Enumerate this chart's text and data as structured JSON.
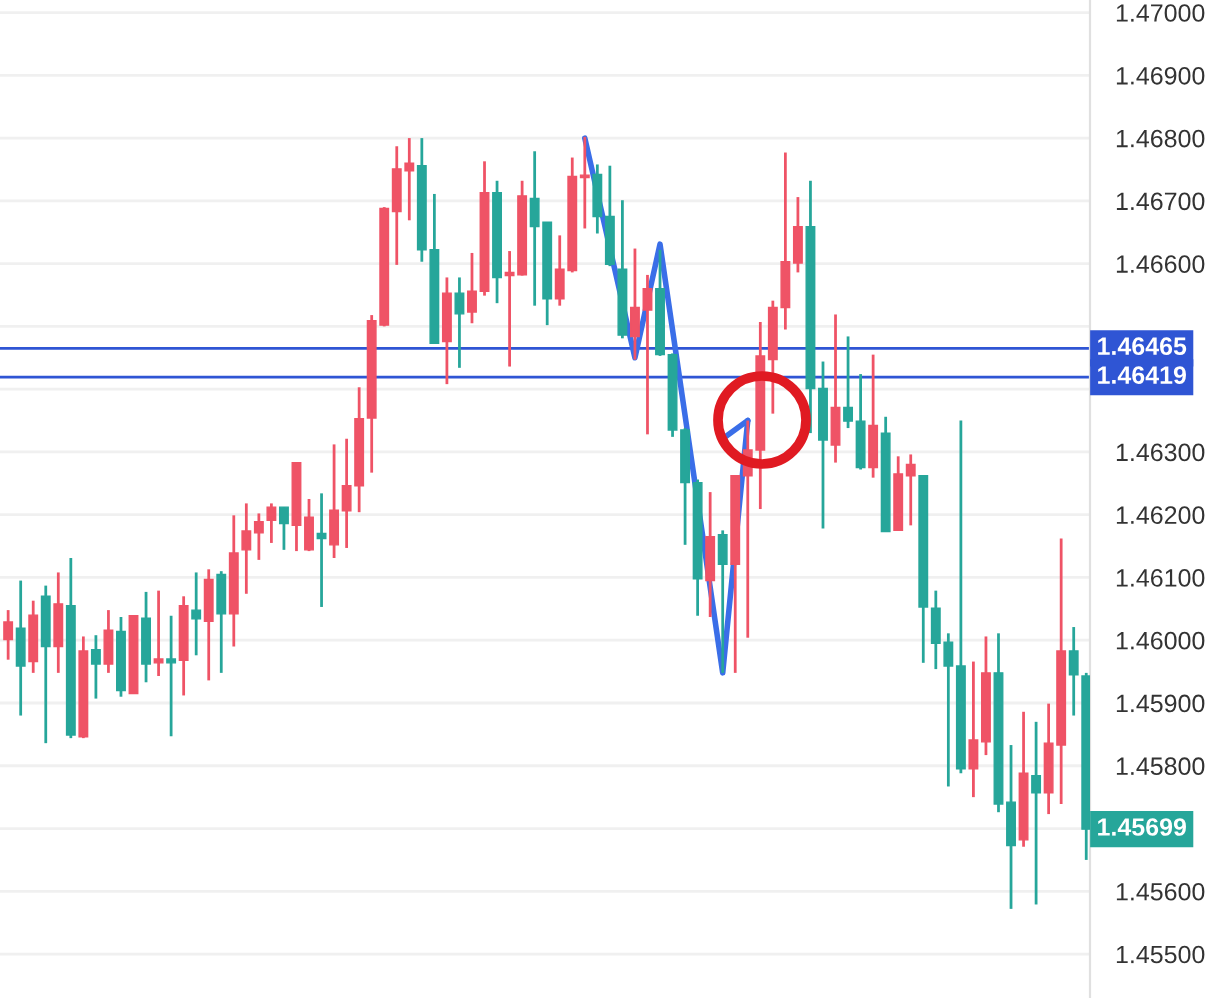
{
  "chart_data": {
    "type": "candlestick",
    "categories": [
      null,
      null,
      null,
      null,
      null,
      null,
      null,
      null,
      null,
      null,
      null,
      null,
      null,
      null,
      null,
      null,
      null,
      null,
      null,
      null,
      null,
      null,
      null,
      null,
      null,
      null,
      null,
      null,
      null,
      null,
      null,
      null,
      null,
      null,
      null,
      null,
      null,
      null,
      null,
      null,
      null,
      null,
      null,
      null,
      null,
      null,
      null,
      null,
      null,
      null,
      null,
      null,
      null,
      null,
      null,
      null,
      null,
      null,
      null,
      null,
      null,
      null,
      null,
      null,
      null,
      null,
      null,
      null,
      null,
      null,
      null,
      null,
      null,
      null,
      null,
      null,
      null,
      null,
      null,
      null,
      null,
      null,
      null,
      null,
      null,
      null,
      null
    ],
    "ohlc": [
      [
        1.46001,
        1.46048,
        1.45969,
        1.46029
      ],
      [
        1.46019,
        1.46095,
        1.4588,
        1.45959
      ],
      [
        1.45966,
        1.46063,
        1.45948,
        1.4604
      ],
      [
        1.4607,
        1.46087,
        1.45836,
        1.4599
      ],
      [
        1.4599,
        1.46108,
        1.45948,
        1.46058
      ],
      [
        1.46055,
        1.46131,
        1.45844,
        1.45849
      ],
      [
        1.45846,
        1.46006,
        1.45844,
        1.45983
      ],
      [
        1.45985,
        1.46008,
        1.45907,
        1.45962
      ],
      [
        1.45962,
        1.46048,
        1.45948,
        1.46016
      ],
      [
        1.46014,
        1.46037,
        1.4591,
        1.4592
      ],
      [
        1.45915,
        1.46039,
        1.45915,
        1.46039
      ],
      [
        1.46035,
        1.46077,
        1.45933,
        1.45962
      ],
      [
        1.45964,
        1.46079,
        1.45943,
        1.4597
      ],
      [
        1.4597,
        1.46039,
        1.45847,
        1.45964
      ],
      [
        1.45968,
        1.4607,
        1.45912,
        1.46055
      ],
      [
        1.46048,
        1.46108,
        1.45976,
        1.46034
      ],
      [
        1.4603,
        1.46113,
        1.45936,
        1.46097
      ],
      [
        1.46105,
        1.4611,
        1.45948,
        1.46042
      ],
      [
        1.46042,
        1.46199,
        1.4599,
        1.46139
      ],
      [
        1.46144,
        1.46218,
        1.46074,
        1.46174
      ],
      [
        1.46171,
        1.46202,
        1.46128,
        1.46189
      ],
      [
        1.46191,
        1.46218,
        1.46155,
        1.46212
      ],
      [
        1.46212,
        1.46212,
        1.46144,
        1.46186
      ],
      [
        1.46183,
        1.46283,
        1.46142,
        1.46283
      ],
      [
        1.46144,
        1.46225,
        1.46142,
        1.46196
      ],
      [
        1.4617,
        1.46234,
        1.46053,
        1.46162
      ],
      [
        1.46152,
        1.46312,
        1.46131,
        1.46207
      ],
      [
        1.46206,
        1.46321,
        1.46147,
        1.46246
      ],
      [
        1.46246,
        1.46403,
        1.46204,
        1.46353
      ],
      [
        1.46354,
        1.46518,
        1.46267,
        1.46509
      ],
      [
        1.46502,
        1.4669,
        1.465,
        1.46688
      ],
      [
        1.46683,
        1.46787,
        1.46598,
        1.46751
      ],
      [
        1.46748,
        1.468,
        1.46669,
        1.4676
      ],
      [
        1.46756,
        1.468,
        1.46603,
        1.46622
      ],
      [
        1.46622,
        1.46711,
        1.46473,
        1.46473
      ],
      [
        1.46476,
        1.46578,
        1.46408,
        1.46553
      ],
      [
        1.46553,
        1.46578,
        1.46434,
        1.4652
      ],
      [
        1.46523,
        1.46617,
        1.46505,
        1.46556
      ],
      [
        1.46556,
        1.46763,
        1.46549,
        1.46713
      ],
      [
        1.46713,
        1.46732,
        1.46537,
        1.46578
      ],
      [
        1.46581,
        1.4662,
        1.46436,
        1.46586
      ],
      [
        1.46582,
        1.46732,
        1.46581,
        1.46708
      ],
      [
        1.46704,
        1.46779,
        1.46533,
        1.46659
      ],
      [
        1.46666,
        1.46666,
        1.46502,
        1.46544
      ],
      [
        1.46544,
        1.46645,
        1.46533,
        1.46591
      ],
      [
        1.46589,
        1.46769,
        1.46586,
        1.46739
      ],
      [
        1.46737,
        1.46802,
        1.46656,
        1.46741
      ],
      [
        1.46742,
        1.46758,
        1.46648,
        1.46675
      ],
      [
        1.46675,
        1.46756,
        1.46596,
        1.46599
      ],
      [
        1.46591,
        1.46701,
        1.46481,
        1.46486
      ],
      [
        1.46484,
        1.46624,
        1.46447,
        1.4653
      ],
      [
        1.46526,
        1.46582,
        1.46328,
        1.4656
      ],
      [
        1.4656,
        1.46622,
        1.46453,
        1.46455
      ],
      [
        1.46455,
        1.46457,
        1.46324,
        1.46335
      ],
      [
        1.46335,
        1.46338,
        1.46152,
        1.46251
      ],
      [
        1.46251,
        1.46256,
        1.46039,
        1.46098
      ],
      [
        1.46095,
        1.46236,
        1.46037,
        1.46165
      ],
      [
        1.46168,
        1.46175,
        1.45948,
        1.46121
      ],
      [
        1.46121,
        1.46262,
        1.45948,
        1.46262
      ],
      [
        1.46262,
        1.4635,
        1.46004,
        1.46303
      ],
      [
        1.46303,
        1.46507,
        1.46209,
        1.46453
      ],
      [
        1.46447,
        1.46541,
        1.46361,
        1.4653
      ],
      [
        1.4653,
        1.46777,
        1.46495,
        1.46603
      ],
      [
        1.46601,
        1.46706,
        1.46586,
        1.46659
      ],
      [
        1.46659,
        1.46732,
        1.4633,
        1.46401
      ],
      [
        1.46401,
        1.46444,
        1.46178,
        1.46319
      ],
      [
        1.46311,
        1.46519,
        1.46283,
        1.46371
      ],
      [
        1.46371,
        1.46484,
        1.46338,
        1.46349
      ],
      [
        1.46349,
        1.46424,
        1.46272,
        1.46275
      ],
      [
        1.46275,
        1.46455,
        1.46259,
        1.46342
      ],
      [
        1.4633,
        1.46356,
        1.46173,
        1.46173
      ],
      [
        1.46175,
        1.46293,
        1.46175,
        1.46265
      ],
      [
        1.46262,
        1.46296,
        1.46183,
        1.4628
      ],
      [
        1.46262,
        1.46262,
        1.45964,
        1.46053
      ],
      [
        1.46051,
        1.46079,
        1.45954,
        1.45995
      ],
      [
        1.45997,
        1.46011,
        1.45767,
        1.45959
      ],
      [
        1.45959,
        1.4635,
        1.45788,
        1.45795
      ],
      [
        1.45795,
        1.45966,
        1.4575,
        1.45841
      ],
      [
        1.45838,
        1.46006,
        1.45817,
        1.45948
      ],
      [
        1.45948,
        1.46011,
        1.45726,
        1.45739
      ],
      [
        1.45742,
        1.45833,
        1.45572,
        1.45673
      ],
      [
        1.45682,
        1.45886,
        1.45671,
        1.45788
      ],
      [
        1.45784,
        1.4587,
        1.45579,
        1.45757
      ],
      [
        1.45757,
        1.45899,
        1.45723,
        1.45836
      ],
      [
        1.45833,
        1.46162,
        1.45739,
        1.45983
      ],
      [
        1.45983,
        1.46021,
        1.4588,
        1.45945
      ],
      [
        1.45943,
        1.45948,
        1.4565,
        1.45699
      ]
    ],
    "colors": [
      "#ef5366",
      "#26a69a",
      "#ef5366",
      "#26a69a",
      "#ef5366",
      "#26a69a",
      "#ef5366",
      "#26a69a",
      "#ef5366",
      "#26a69a",
      "#ef5366",
      "#26a69a",
      "#ef5366",
      "#26a69a",
      "#ef5366",
      "#26a69a",
      "#ef5366",
      "#26a69a",
      "#ef5366",
      "#ef5366",
      "#ef5366",
      "#ef5366",
      "#26a69a",
      "#ef5366",
      "#ef5366",
      "#26a69a",
      "#ef5366",
      "#ef5366",
      "#ef5366",
      "#ef5366",
      "#ef5366",
      "#ef5366",
      "#ef5366",
      "#26a69a",
      "#26a69a",
      "#ef5366",
      "#26a69a",
      "#ef5366",
      "#ef5366",
      "#26a69a",
      "#ef5366",
      "#ef5366",
      "#26a69a",
      "#26a69a",
      "#ef5366",
      "#ef5366",
      "#ef5366",
      "#26a69a",
      "#26a69a",
      "#26a69a",
      "#ef5366",
      "#ef5366",
      "#26a69a",
      "#26a69a",
      "#26a69a",
      "#26a69a",
      "#ef5366",
      "#26a69a",
      "#ef5366",
      "#ef5366",
      "#ef5366",
      "#ef5366",
      "#ef5366",
      "#ef5366",
      "#26a69a",
      "#26a69a",
      "#ef5366",
      "#26a69a",
      "#26a69a",
      "#ef5366",
      "#26a69a",
      "#ef5366",
      "#ef5366",
      "#26a69a",
      "#26a69a",
      "#26a69a",
      "#26a69a",
      "#ef5366",
      "#ef5366",
      "#26a69a",
      "#26a69a",
      "#ef5366",
      "#26a69a",
      "#ef5366",
      "#ef5366",
      "#26a69a",
      "#26a69a"
    ],
    "series": [
      {
        "type": "line",
        "color": "#3a6ee8",
        "values": [
          null,
          null,
          null,
          null,
          null,
          null,
          null,
          null,
          null,
          null,
          null,
          null,
          null,
          null,
          null,
          null,
          null,
          null,
          null,
          null,
          null,
          null,
          null,
          null,
          null,
          null,
          null,
          null,
          null,
          null,
          null,
          null,
          null,
          null,
          null,
          null,
          null,
          null,
          null,
          null,
          null,
          null,
          null,
          null,
          null,
          null,
          1.468,
          null,
          null,
          null,
          1.4645,
          null,
          1.46631,
          null,
          null,
          null,
          null,
          1.45948,
          null,
          1.4635,
          null,
          null,
          null,
          null,
          null,
          null,
          null,
          null,
          null,
          null,
          null,
          null,
          null,
          null,
          null,
          null,
          null,
          null,
          null,
          null,
          null,
          null,
          null,
          null,
          null,
          null,
          null
        ]
      },
      {
        "type": "line",
        "color": "#3a6ee8",
        "values": [
          null,
          null,
          null,
          null,
          null,
          null,
          null,
          null,
          null,
          null,
          null,
          null,
          null,
          null,
          null,
          null,
          null,
          null,
          null,
          null,
          null,
          null,
          null,
          null,
          null,
          null,
          null,
          null,
          null,
          null,
          null,
          null,
          null,
          null,
          null,
          null,
          null,
          null,
          null,
          null,
          null,
          null,
          null,
          null,
          null,
          null,
          null,
          null,
          null,
          null,
          null,
          null,
          null,
          null,
          null,
          null,
          null,
          1.46321,
          null,
          1.4635,
          null,
          null,
          null,
          null,
          null,
          null,
          null,
          null,
          null,
          null,
          null,
          null,
          null,
          null,
          null,
          null,
          null,
          null,
          null,
          null,
          null,
          null,
          null,
          null,
          null,
          null,
          null
        ]
      }
    ],
    "ylim": [
      1.4543,
      1.4702
    ],
    "yticks": [
      {
        "value": 1.455,
        "label": "1.45500"
      },
      {
        "value": 1.456,
        "label": "1.45600"
      },
      {
        "value": 1.457,
        "label": null
      },
      {
        "value": 1.458,
        "label": "1.45800"
      },
      {
        "value": 1.459,
        "label": "1.45900"
      },
      {
        "value": 1.46,
        "label": "1.46000"
      },
      {
        "value": 1.461,
        "label": "1.46100"
      },
      {
        "value": 1.462,
        "label": "1.46200"
      },
      {
        "value": 1.463,
        "label": "1.46300"
      },
      {
        "value": 1.464,
        "label": null
      },
      {
        "value": 1.465,
        "label": null
      },
      {
        "value": 1.466,
        "label": "1.46600"
      },
      {
        "value": 1.467,
        "label": "1.46700"
      },
      {
        "value": 1.468,
        "label": "1.46800"
      },
      {
        "value": 1.469,
        "label": "1.46900"
      },
      {
        "value": 1.47,
        "label": "1.47000"
      }
    ],
    "ref_lines": [
      {
        "axis": "y",
        "value": 1.46465,
        "label": "1.46465",
        "color": "#2f55d4"
      },
      {
        "axis": "y",
        "value": 1.46419,
        "label": "1.46419",
        "color": "#2f55d4"
      }
    ],
    "annotations": [
      "1.45699"
    ],
    "tick_labels": "y",
    "grid": "y"
  }
}
